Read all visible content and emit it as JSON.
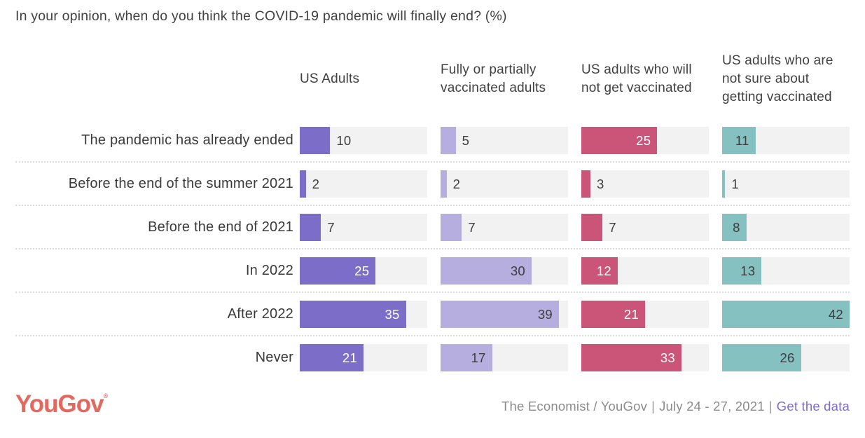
{
  "title": "In your opinion, when do you think the COVID-19 pandemic will finally end? (%)",
  "chart_data": {
    "type": "bar",
    "orientation": "horizontal",
    "scale_max": 42,
    "track_color": "#f2f2f2",
    "categories": [
      "The pandemic has already ended",
      "Before the end of the summer 2021",
      "Before the end of 2021",
      "In 2022",
      "After 2022",
      "Never"
    ],
    "series": [
      {
        "name": "US Adults",
        "color": "#7c6ec8",
        "label_inside_color": "#ffffff",
        "label_outside_color": "#3d3d3d",
        "values": [
          10,
          2,
          7,
          25,
          35,
          21
        ],
        "label_inside": [
          false,
          false,
          false,
          true,
          true,
          true
        ]
      },
      {
        "name": "Fully or partially vaccinated adults",
        "color": "#b6aede",
        "label_inside_color": "#3d3d3d",
        "label_outside_color": "#3d3d3d",
        "values": [
          5,
          2,
          7,
          30,
          39,
          17
        ],
        "label_inside": [
          false,
          false,
          false,
          true,
          true,
          true
        ]
      },
      {
        "name": "US adults who will not get vaccinated",
        "color": "#cb5479",
        "label_inside_color": "#ffffff",
        "label_outside_color": "#3d3d3d",
        "values": [
          25,
          3,
          7,
          12,
          21,
          33
        ],
        "label_inside": [
          true,
          false,
          false,
          true,
          true,
          true
        ]
      },
      {
        "name": "US adults who are not sure about getting vaccinated",
        "color": "#85c1c1",
        "label_inside_color": "#3d3d3d",
        "label_outside_color": "#3d3d3d",
        "values": [
          11,
          1,
          8,
          13,
          42,
          26
        ],
        "label_inside": [
          true,
          false,
          true,
          true,
          true,
          true
        ]
      }
    ]
  },
  "footer": {
    "logo_text": "YouGov",
    "logo_mark": "®",
    "source": "The Economist / YouGov",
    "date": "July 24 - 27, 2021",
    "divider": "|",
    "link_label": "Get the data"
  }
}
